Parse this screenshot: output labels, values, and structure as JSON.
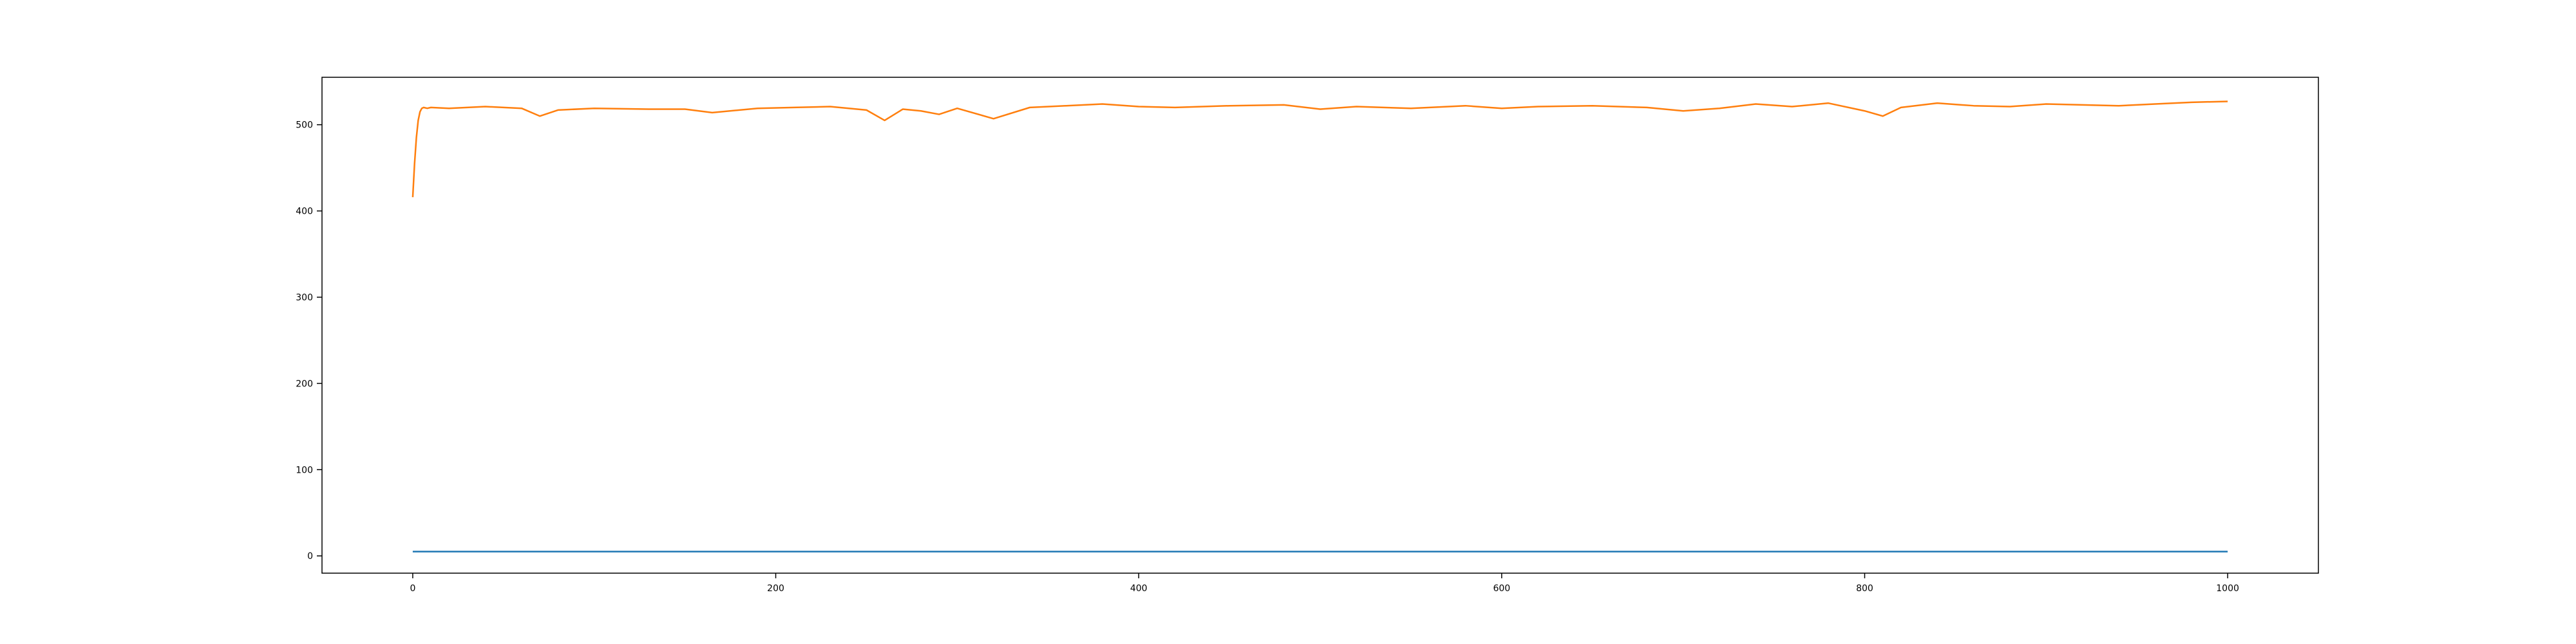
{
  "chart_data": {
    "type": "line",
    "title": "",
    "xlabel": "",
    "ylabel": "",
    "xlim": [
      -50,
      1050
    ],
    "ylim": [
      -20,
      555
    ],
    "x_ticks": [
      0,
      200,
      400,
      600,
      800,
      1000
    ],
    "y_ticks": [
      0,
      100,
      200,
      300,
      400,
      500
    ],
    "grid": false,
    "series": [
      {
        "color": "#1f77b4",
        "x": [
          0,
          100,
          200,
          300,
          400,
          500,
          600,
          700,
          800,
          900,
          1000
        ],
        "y": [
          5,
          5,
          5,
          5,
          5,
          5,
          5,
          5,
          5,
          5,
          5
        ]
      },
      {
        "color": "#ff7f0e",
        "x": [
          0,
          1,
          2,
          3,
          4,
          5,
          6,
          8,
          10,
          20,
          40,
          60,
          70,
          80,
          100,
          130,
          150,
          165,
          190,
          210,
          230,
          250,
          260,
          270,
          280,
          290,
          300,
          320,
          340,
          360,
          380,
          400,
          420,
          450,
          480,
          500,
          520,
          550,
          580,
          600,
          620,
          650,
          680,
          700,
          720,
          740,
          760,
          780,
          800,
          810,
          820,
          840,
          860,
          880,
          900,
          920,
          940,
          960,
          980,
          1000
        ],
        "y": [
          416,
          455,
          485,
          505,
          515,
          519,
          520,
          519,
          520,
          519,
          521,
          519,
          510,
          517,
          519,
          518,
          518,
          514,
          519,
          520,
          521,
          517,
          505,
          518,
          516,
          512,
          519,
          507,
          520,
          522,
          524,
          521,
          520,
          522,
          523,
          518,
          521,
          519,
          522,
          519,
          521,
          522,
          520,
          516,
          519,
          524,
          521,
          525,
          516,
          510,
          520,
          525,
          522,
          521,
          524,
          523,
          522,
          524,
          526,
          527
        ]
      }
    ]
  }
}
